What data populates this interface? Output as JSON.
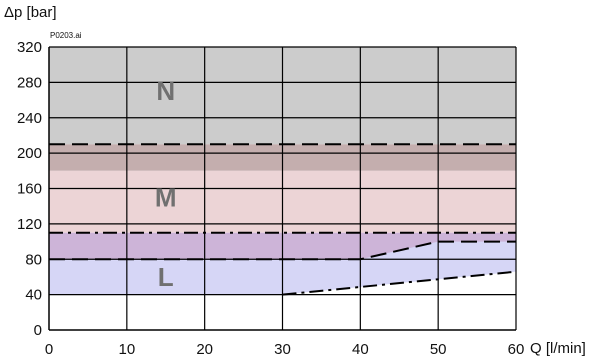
{
  "chart_data": {
    "type": "area",
    "figure_id": "P0203.ai",
    "xlabel": "Q [l/min]",
    "ylabel": "Δp [bar]",
    "xlim": [
      0,
      60
    ],
    "ylim": [
      0,
      320
    ],
    "x_ticks": [
      0,
      10,
      20,
      30,
      40,
      50,
      60
    ],
    "y_ticks": [
      0,
      40,
      80,
      120,
      160,
      200,
      240,
      280,
      320
    ],
    "grid": true,
    "colors": {
      "band_N": "#cccccc",
      "band_M_upper": "#c4aeae",
      "band_M_lower": "#ecd4d6",
      "band_ML_overlap": "#cdb4d8",
      "band_L": "#d6d6f6",
      "label": "#707070",
      "line": "#000000"
    },
    "regions": [
      {
        "label": "N",
        "label_at": [
          15,
          270
        ]
      },
      {
        "label": "M",
        "label_at": [
          15,
          150
        ]
      },
      {
        "label": "L",
        "label_at": [
          15,
          60
        ]
      }
    ],
    "bands": [
      {
        "band": "N",
        "y_from": 210,
        "y_to": 320,
        "x_from": 0,
        "x_to": 60
      },
      {
        "band": "M_upper",
        "y_from": 180,
        "y_to": 210,
        "x_from": 0,
        "x_to": 60
      },
      {
        "band": "M_lower",
        "y_from": 110,
        "y_to": 180,
        "x_from": 0,
        "x_to": 60
      },
      {
        "band": "ML_overlap",
        "y_from": 80,
        "y_to": 110,
        "x_from": 0,
        "x_to": 60
      },
      {
        "band": "L",
        "points": [
          [
            0,
            40
          ],
          [
            30,
            40
          ],
          [
            60,
            66
          ],
          [
            60,
            100
          ],
          [
            50,
            100
          ],
          [
            40,
            80
          ],
          [
            0,
            80
          ]
        ]
      }
    ],
    "boundary_lines": [
      {
        "style": "dashed",
        "points": [
          [
            0,
            210
          ],
          [
            60,
            210
          ]
        ]
      },
      {
        "style": "dashdot",
        "points": [
          [
            0,
            110
          ],
          [
            60,
            110
          ]
        ]
      },
      {
        "style": "dashed",
        "points": [
          [
            0,
            80
          ],
          [
            40,
            80
          ],
          [
            50,
            100
          ],
          [
            60,
            100
          ]
        ]
      },
      {
        "style": "dashdot",
        "points": [
          [
            30,
            40
          ],
          [
            60,
            66
          ]
        ]
      }
    ]
  }
}
